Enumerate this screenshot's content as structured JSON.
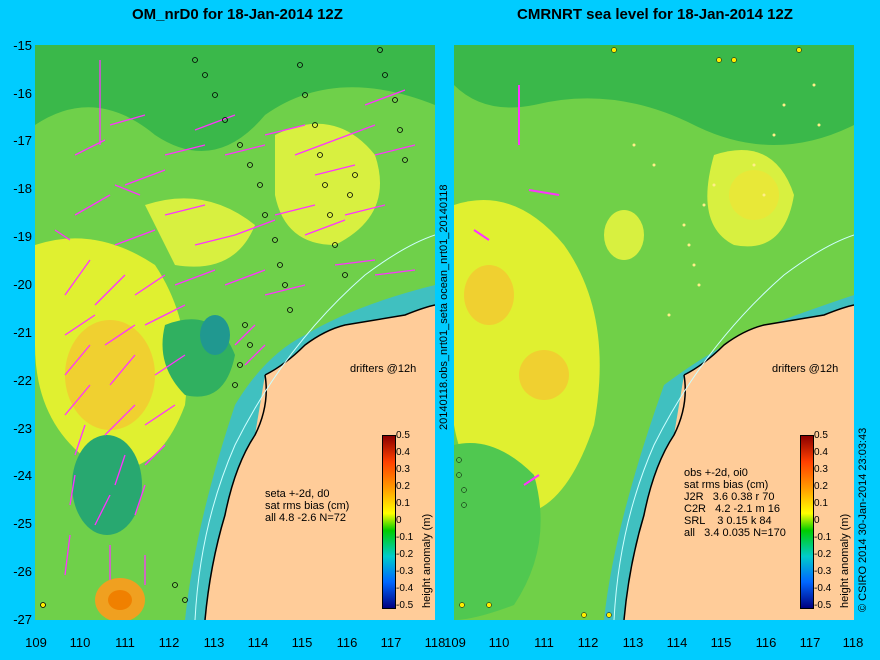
{
  "left_panel": {
    "title": "OM_nrD0 for 18-Jan-2014 12Z",
    "annotation": "seta +-2d, d0\nsat rms bias (cm)\nall 4.8 -2.6 N=72",
    "drifters_label": "drifters @12h"
  },
  "right_panel": {
    "title": "CMRNRT sea level  for 18-Jan-2014 12Z",
    "annotation": "obs +-2d, oi0\nsat rms bias (cm)\nJ2R   3.6 0.38 r 70\nC2R   4.2 -2.1 m 16\nSRL    3 0.15 k 84\nall   3.4 0.035 N=170",
    "drifters_label": "drifters @12h"
  },
  "axes": {
    "y_ticks": [
      "-15",
      "-16",
      "-17",
      "-18",
      "-19",
      "-20",
      "-21",
      "-22",
      "-23",
      "-24",
      "-25",
      "-26",
      "-27"
    ],
    "x_ticks_left": [
      "109",
      "110",
      "111",
      "112",
      "113",
      "114",
      "115",
      "116",
      "117",
      "118"
    ],
    "x_ticks_right": [
      "109",
      "110",
      "111",
      "112",
      "113",
      "114",
      "115",
      "116",
      "117",
      "118"
    ]
  },
  "colorbar": {
    "label": "height anomaly (m)",
    "ticks": [
      "0.5",
      "0.4",
      "0.3",
      "0.2",
      "0.1",
      "0",
      "-0.1",
      "-0.2",
      "-0.3",
      "-0.4",
      "-0.5"
    ]
  },
  "side_labels": {
    "middle": "20140118.obs_nrt01_seta      ocean_nrt01_20140118",
    "copyright": "© CSIRO 2014   30-Jan-2014 23:03:43"
  },
  "colors": {
    "background": "#00ccff",
    "land": "#ffcc99",
    "drifter": "#ff33ff",
    "shelf": "#40c0c0"
  }
}
